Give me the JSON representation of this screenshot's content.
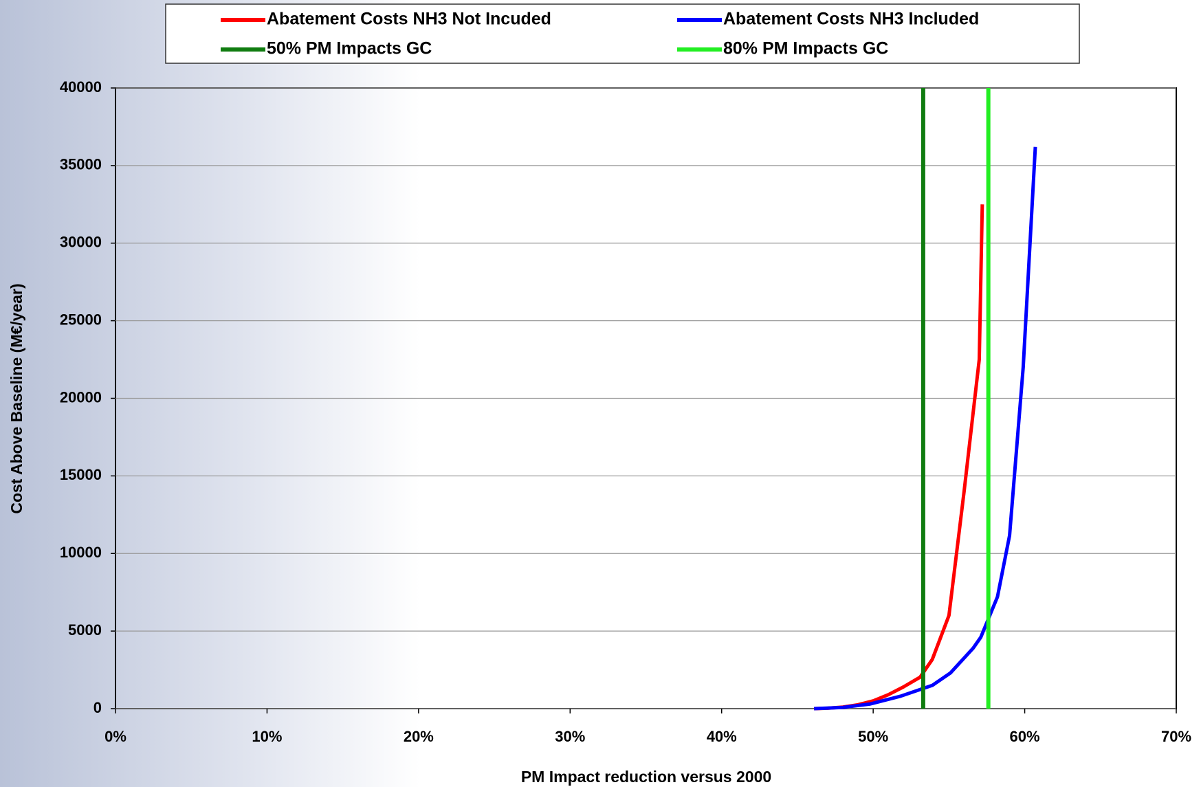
{
  "chart_data": {
    "type": "line",
    "xlabel": "PM Impact reduction versus 2000",
    "ylabel": "Cost Above Baseline (M€/year)",
    "xlim": [
      0,
      70
    ],
    "ylim": [
      0,
      40000
    ],
    "xticks": [
      {
        "value": 0,
        "label": "0%"
      },
      {
        "value": 10,
        "label": "10%"
      },
      {
        "value": 20,
        "label": "20%"
      },
      {
        "value": 30,
        "label": "30%"
      },
      {
        "value": 40,
        "label": "40%"
      },
      {
        "value": 50,
        "label": "50%"
      },
      {
        "value": 60,
        "label": "60%"
      },
      {
        "value": 70,
        "label": "70%"
      }
    ],
    "yticks": [
      0,
      5000,
      10000,
      15000,
      20000,
      25000,
      30000,
      35000,
      40000
    ],
    "grid": true,
    "series": [
      {
        "name": "Abatement Costs NH3 Not Incuded",
        "color": "#ff0000",
        "x": [
          46.1,
          47,
          48,
          49,
          50,
          51,
          52,
          53.1,
          53.9,
          55.0,
          56.0,
          57.0,
          57.2
        ],
        "values": [
          0,
          30,
          100,
          250,
          500,
          900,
          1400,
          2030,
          3170,
          6000,
          14000,
          22500,
          32500
        ]
      },
      {
        "name": "Abatement Costs NH3 Included",
        "color": "#0000ff",
        "x": [
          46.1,
          48,
          49.8,
          51.8,
          53.9,
          55.1,
          56.6,
          57.1,
          58.2,
          59.0,
          59.9,
          60.7
        ],
        "values": [
          0,
          80,
          300,
          800,
          1500,
          2300,
          3900,
          4600,
          7200,
          11150,
          22000,
          36200
        ]
      },
      {
        "name": "50% PM Impacts GC",
        "color": "#107c10",
        "vline": 53.3
      },
      {
        "name": "80% PM Impacts GC",
        "color": "#22ee22",
        "vline": 57.6
      }
    ]
  }
}
